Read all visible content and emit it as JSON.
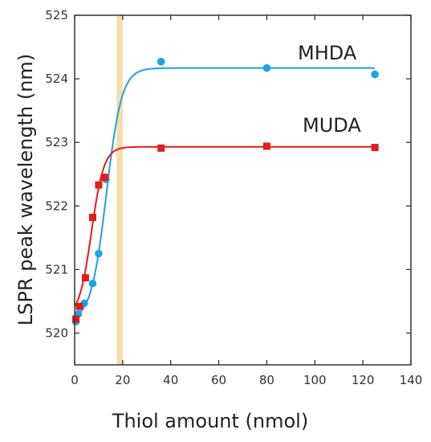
{
  "chart_data": {
    "type": "scatter",
    "xlabel": "Thiol amount (nmol)",
    "ylabel": "LSPR peak wavelength (nm)",
    "xlim": [
      0,
      140
    ],
    "ylim": [
      519.5,
      525
    ],
    "x_ticks": [
      0,
      20,
      40,
      60,
      80,
      100,
      120,
      140
    ],
    "y_ticks": [
      520,
      521,
      522,
      523,
      524,
      525
    ],
    "grid": false,
    "highlight_band": {
      "x": [
        17.5,
        20
      ],
      "color": "#f2d79a"
    },
    "series": [
      {
        "name": "MHDA",
        "color": "#1ea1e6",
        "marker": "circle",
        "points": [
          {
            "x": 0.5,
            "y": 520.18
          },
          {
            "x": 1.5,
            "y": 520.3
          },
          {
            "x": 4,
            "y": 520.47
          },
          {
            "x": 7.5,
            "y": 520.78
          },
          {
            "x": 10,
            "y": 521.25
          },
          {
            "x": 13,
            "y": 522.42
          },
          {
            "x": 36,
            "y": 524.27
          },
          {
            "x": 80,
            "y": 524.17
          },
          {
            "x": 125,
            "y": 524.07
          }
        ],
        "fit": {
          "y0": 520.2,
          "y1": 524.17,
          "xc": 13.2,
          "k": 3.2
        }
      },
      {
        "name": "MUDA",
        "color": "#e31b1b",
        "marker": "square",
        "points": [
          {
            "x": 0.5,
            "y": 520.22
          },
          {
            "x": 2,
            "y": 520.42
          },
          {
            "x": 4.5,
            "y": 520.87
          },
          {
            "x": 7.5,
            "y": 521.82
          },
          {
            "x": 10,
            "y": 522.33
          },
          {
            "x": 12.5,
            "y": 522.45
          },
          {
            "x": 36,
            "y": 522.91
          },
          {
            "x": 80,
            "y": 522.94
          },
          {
            "x": 125,
            "y": 522.92
          }
        ],
        "fit": {
          "y0": 520.25,
          "y1": 522.93,
          "xc": 7.0,
          "k": 2.6
        }
      }
    ]
  }
}
